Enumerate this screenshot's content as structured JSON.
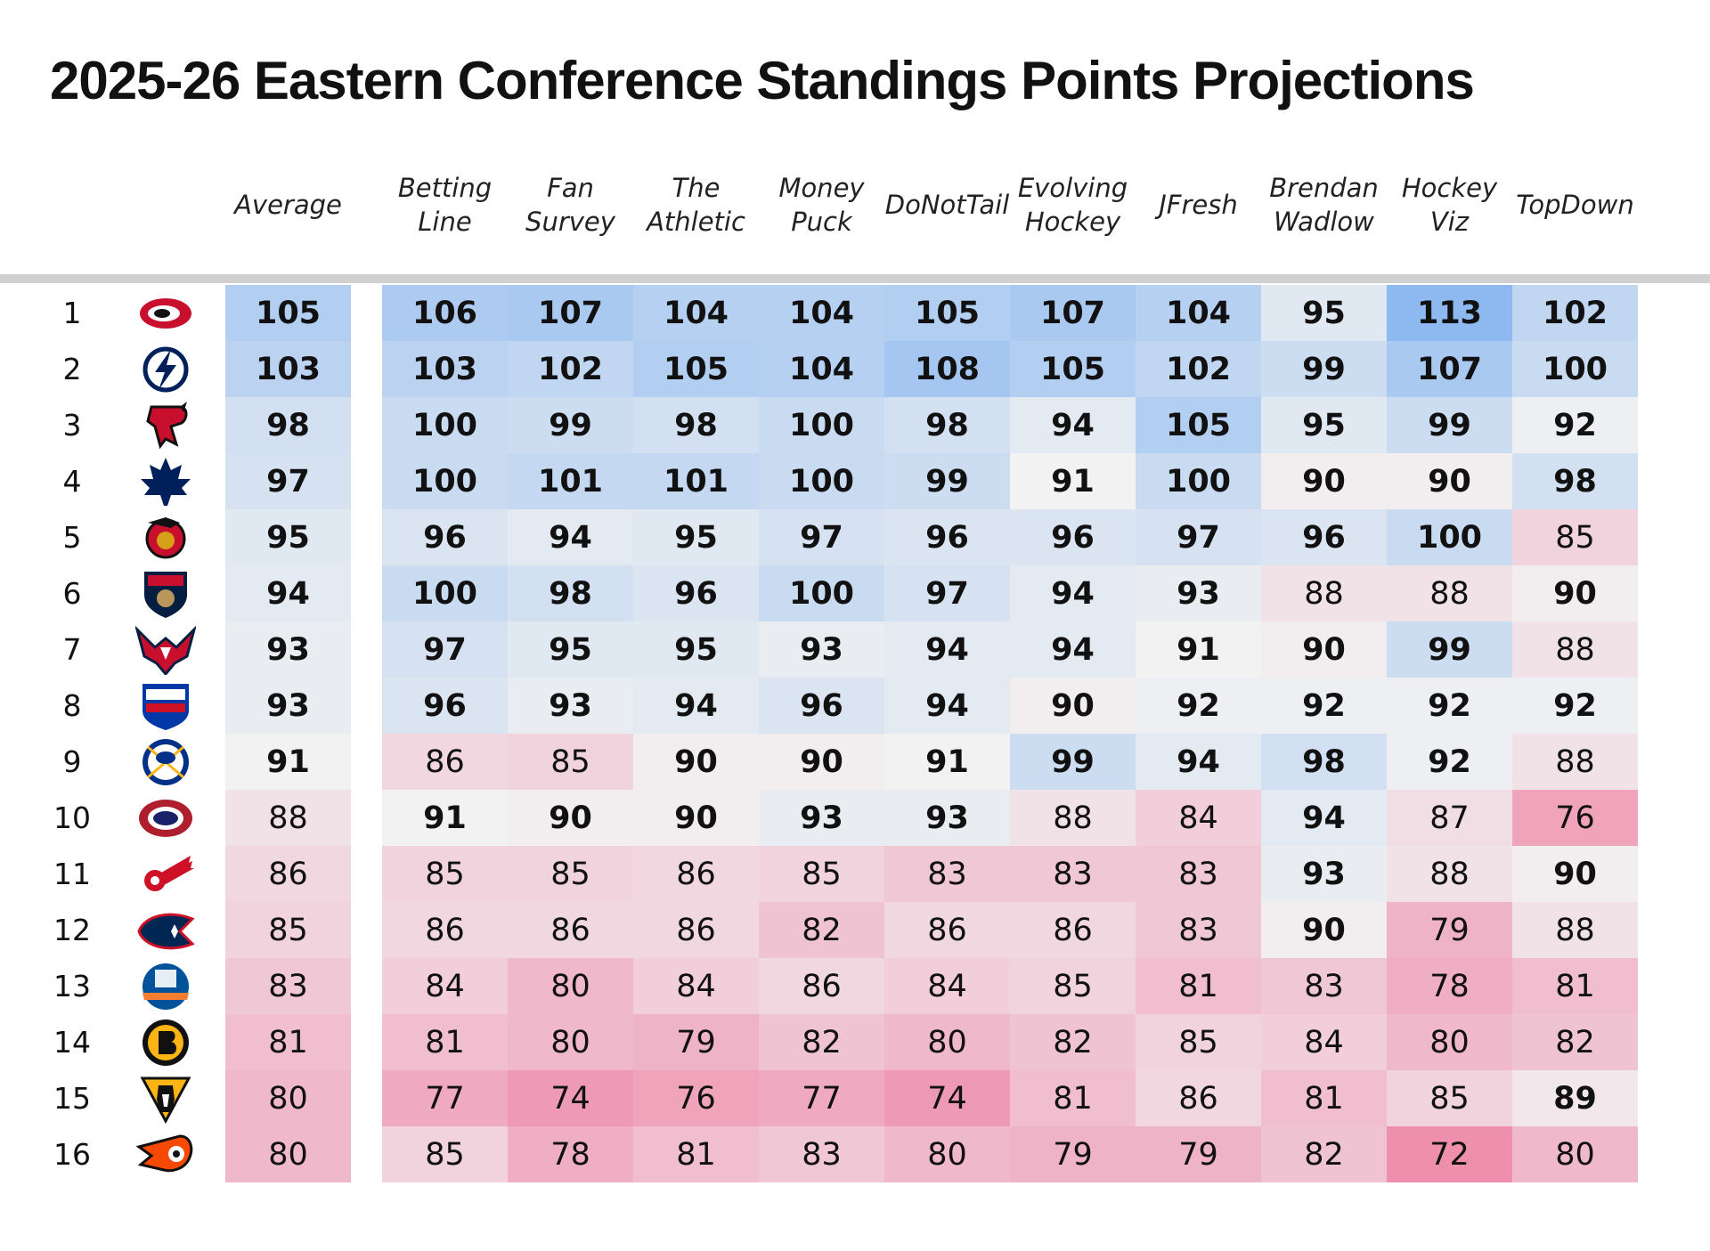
{
  "chart_data": {
    "type": "table",
    "title": "2025-26 Eastern Conference Standings Points Projections",
    "columns": [
      "Average",
      "Betting\nLine",
      "Fan\nSurvey",
      "The\nAthletic",
      "Money\nPuck",
      "DoNotTail",
      "Evolving\nHockey",
      "JFresh",
      "Brendan\nWadlow",
      "Hockey\nViz",
      "TopDown"
    ],
    "rows": [
      {
        "rank": "1",
        "team_logo": "carolina-hurricanes-logo",
        "values": [
          105,
          106,
          107,
          104,
          104,
          105,
          107,
          104,
          95,
          113,
          102
        ]
      },
      {
        "rank": "2",
        "team_logo": "tampa-bay-lightning-logo",
        "values": [
          103,
          103,
          102,
          105,
          104,
          108,
          105,
          102,
          99,
          107,
          100
        ]
      },
      {
        "rank": "3",
        "team_logo": "new-jersey-devils-logo",
        "values": [
          98,
          100,
          99,
          98,
          100,
          98,
          94,
          105,
          95,
          99,
          92
        ]
      },
      {
        "rank": "4",
        "team_logo": "toronto-maple-leafs-logo",
        "values": [
          97,
          100,
          101,
          101,
          100,
          99,
          91,
          100,
          90,
          90,
          98
        ]
      },
      {
        "rank": "5",
        "team_logo": "ottawa-senators-logo",
        "values": [
          95,
          96,
          94,
          95,
          97,
          96,
          96,
          97,
          96,
          100,
          85
        ]
      },
      {
        "rank": "6",
        "team_logo": "florida-panthers-logo",
        "values": [
          94,
          100,
          98,
          96,
          100,
          97,
          94,
          93,
          88,
          88,
          90
        ]
      },
      {
        "rank": "7",
        "team_logo": "washington-capitals-logo",
        "values": [
          93,
          97,
          95,
          95,
          93,
          94,
          94,
          91,
          90,
          99,
          88
        ]
      },
      {
        "rank": "8",
        "team_logo": "new-york-rangers-logo",
        "values": [
          93,
          96,
          93,
          94,
          96,
          94,
          90,
          92,
          92,
          92,
          92
        ]
      },
      {
        "rank": "9",
        "team_logo": "buffalo-sabres-logo",
        "values": [
          91,
          86,
          85,
          90,
          90,
          91,
          99,
          94,
          98,
          92,
          88
        ]
      },
      {
        "rank": "10",
        "team_logo": "montreal-canadiens-logo",
        "values": [
          88,
          91,
          90,
          90,
          93,
          93,
          88,
          84,
          94,
          87,
          76
        ]
      },
      {
        "rank": "11",
        "team_logo": "detroit-red-wings-logo",
        "values": [
          86,
          85,
          85,
          86,
          85,
          83,
          83,
          83,
          93,
          88,
          90
        ]
      },
      {
        "rank": "12",
        "team_logo": "columbus-blue-jackets-logo",
        "values": [
          85,
          86,
          86,
          86,
          82,
          86,
          86,
          83,
          90,
          79,
          88
        ]
      },
      {
        "rank": "13",
        "team_logo": "new-york-islanders-logo",
        "values": [
          83,
          84,
          80,
          84,
          86,
          84,
          85,
          81,
          83,
          78,
          81
        ]
      },
      {
        "rank": "14",
        "team_logo": "boston-bruins-logo",
        "values": [
          81,
          81,
          80,
          79,
          82,
          80,
          82,
          85,
          84,
          80,
          82
        ]
      },
      {
        "rank": "15",
        "team_logo": "pittsburgh-penguins-logo",
        "values": [
          80,
          77,
          74,
          76,
          77,
          74,
          81,
          86,
          81,
          85,
          89
        ]
      },
      {
        "rank": "16",
        "team_logo": "philadelphia-flyers-logo",
        "values": [
          80,
          85,
          78,
          81,
          83,
          80,
          79,
          79,
          82,
          72,
          80
        ]
      }
    ],
    "bold_threshold": 89,
    "colors": {
      "high": "#8db9f0",
      "mid": "#f2f2f2",
      "low": "#ee8fae",
      "divider": "#d0d0d0"
    }
  }
}
